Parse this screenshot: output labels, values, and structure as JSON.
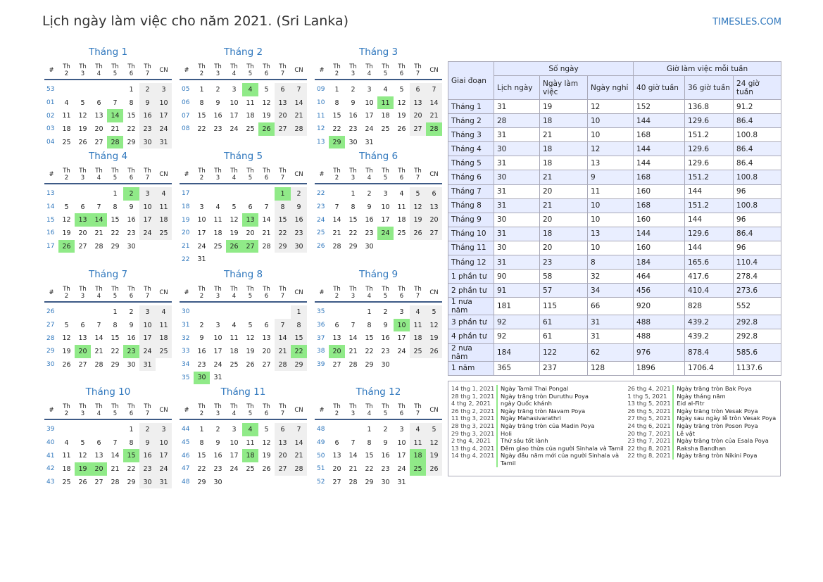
{
  "header": {
    "title": "Lịch ngày làm việc cho năm 2021. (Sri Lanka)",
    "site": "TIMESLES.COM"
  },
  "weekdays": [
    "#",
    "Th 2",
    "Th 3",
    "Th 4",
    "Th 5",
    "Th 6",
    "Th 7",
    "CN"
  ],
  "months": [
    {
      "name": "Tháng 1",
      "holidays": [
        14,
        28
      ],
      "weeks": [
        [
          "53",
          null,
          null,
          null,
          null,
          1,
          2,
          3
        ],
        [
          "01",
          4,
          5,
          6,
          7,
          8,
          9,
          10
        ],
        [
          "02",
          11,
          12,
          13,
          14,
          15,
          16,
          17
        ],
        [
          "03",
          18,
          19,
          20,
          21,
          22,
          23,
          24
        ],
        [
          "04",
          25,
          26,
          27,
          28,
          29,
          30,
          31
        ]
      ]
    },
    {
      "name": "Tháng 2",
      "holidays": [
        4,
        26
      ],
      "weeks": [
        [
          "05",
          1,
          2,
          3,
          4,
          5,
          6,
          7
        ],
        [
          "06",
          8,
          9,
          10,
          11,
          12,
          13,
          14
        ],
        [
          "07",
          15,
          16,
          17,
          18,
          19,
          20,
          21
        ],
        [
          "08",
          22,
          23,
          24,
          25,
          26,
          27,
          28
        ]
      ]
    },
    {
      "name": "Tháng 3",
      "holidays": [
        11,
        28,
        29
      ],
      "weeks": [
        [
          "09",
          1,
          2,
          3,
          4,
          5,
          6,
          7
        ],
        [
          "10",
          8,
          9,
          10,
          11,
          12,
          13,
          14
        ],
        [
          "11",
          15,
          16,
          17,
          18,
          19,
          20,
          21
        ],
        [
          "12",
          22,
          23,
          24,
          25,
          26,
          27,
          28
        ],
        [
          "13",
          29,
          30,
          31,
          null,
          null,
          null,
          null
        ]
      ]
    },
    {
      "name": "Tháng 4",
      "holidays": [
        2,
        13,
        14,
        26
      ],
      "weeks": [
        [
          "13",
          null,
          null,
          null,
          1,
          2,
          3,
          4
        ],
        [
          "14",
          5,
          6,
          7,
          8,
          9,
          10,
          11
        ],
        [
          "15",
          12,
          13,
          14,
          15,
          16,
          17,
          18
        ],
        [
          "16",
          19,
          20,
          21,
          22,
          23,
          24,
          25
        ],
        [
          "17",
          26,
          27,
          28,
          29,
          30,
          null,
          null
        ]
      ]
    },
    {
      "name": "Tháng 5",
      "holidays": [
        1,
        13,
        26,
        27
      ],
      "weeks": [
        [
          "17",
          null,
          null,
          null,
          null,
          null,
          1,
          2
        ],
        [
          "18",
          3,
          4,
          5,
          6,
          7,
          8,
          9
        ],
        [
          "19",
          10,
          11,
          12,
          13,
          14,
          15,
          16
        ],
        [
          "20",
          17,
          18,
          19,
          20,
          21,
          22,
          23
        ],
        [
          "21",
          24,
          25,
          26,
          27,
          28,
          29,
          30
        ],
        [
          "22",
          31,
          null,
          null,
          null,
          null,
          null,
          null
        ]
      ]
    },
    {
      "name": "Tháng 6",
      "holidays": [
        24
      ],
      "weeks": [
        [
          "22",
          null,
          1,
          2,
          3,
          4,
          5,
          6
        ],
        [
          "23",
          7,
          8,
          9,
          10,
          11,
          12,
          13
        ],
        [
          "24",
          14,
          15,
          16,
          17,
          18,
          19,
          20
        ],
        [
          "25",
          21,
          22,
          23,
          24,
          25,
          26,
          27
        ],
        [
          "26",
          28,
          29,
          30,
          null,
          null,
          null,
          null
        ]
      ]
    },
    {
      "name": "Tháng 7",
      "holidays": [
        20,
        23
      ],
      "weeks": [
        [
          "26",
          null,
          null,
          null,
          1,
          2,
          3,
          4
        ],
        [
          "27",
          5,
          6,
          7,
          8,
          9,
          10,
          11
        ],
        [
          "28",
          12,
          13,
          14,
          15,
          16,
          17,
          18
        ],
        [
          "29",
          19,
          20,
          21,
          22,
          23,
          24,
          25
        ],
        [
          "30",
          26,
          27,
          28,
          29,
          30,
          31,
          null
        ]
      ]
    },
    {
      "name": "Tháng 8",
      "holidays": [
        22,
        30
      ],
      "weeks": [
        [
          "30",
          null,
          null,
          null,
          null,
          null,
          null,
          1
        ],
        [
          "31",
          2,
          3,
          4,
          5,
          6,
          7,
          8
        ],
        [
          "32",
          9,
          10,
          11,
          12,
          13,
          14,
          15
        ],
        [
          "33",
          16,
          17,
          18,
          19,
          20,
          21,
          22
        ],
        [
          "34",
          23,
          24,
          25,
          26,
          27,
          28,
          29
        ],
        [
          "35",
          30,
          31,
          null,
          null,
          null,
          null,
          null
        ]
      ]
    },
    {
      "name": "Tháng 9",
      "holidays": [
        10,
        20
      ],
      "weeks": [
        [
          "35",
          null,
          null,
          1,
          2,
          3,
          4,
          5
        ],
        [
          "36",
          6,
          7,
          8,
          9,
          10,
          11,
          12
        ],
        [
          "37",
          13,
          14,
          15,
          16,
          17,
          18,
          19
        ],
        [
          "38",
          20,
          21,
          22,
          23,
          24,
          25,
          26
        ],
        [
          "39",
          27,
          28,
          29,
          30,
          null,
          null,
          null
        ]
      ]
    },
    {
      "name": "Tháng 10",
      "holidays": [
        15,
        19,
        20
      ],
      "weeks": [
        [
          "39",
          null,
          null,
          null,
          null,
          1,
          2,
          3
        ],
        [
          "40",
          4,
          5,
          6,
          7,
          8,
          9,
          10
        ],
        [
          "41",
          11,
          12,
          13,
          14,
          15,
          16,
          17
        ],
        [
          "42",
          18,
          19,
          20,
          21,
          22,
          23,
          24
        ],
        [
          "43",
          25,
          26,
          27,
          28,
          29,
          30,
          31
        ]
      ]
    },
    {
      "name": "Tháng 11",
      "holidays": [
        4,
        18
      ],
      "weeks": [
        [
          "44",
          1,
          2,
          3,
          4,
          5,
          6,
          7
        ],
        [
          "45",
          8,
          9,
          10,
          11,
          12,
          13,
          14
        ],
        [
          "46",
          15,
          16,
          17,
          18,
          19,
          20,
          21
        ],
        [
          "47",
          22,
          23,
          24,
          25,
          26,
          27,
          28
        ],
        [
          "48",
          29,
          30,
          null,
          null,
          null,
          null,
          null
        ]
      ]
    },
    {
      "name": "Tháng 12",
      "holidays": [
        18,
        25
      ],
      "weeks": [
        [
          "48",
          null,
          null,
          1,
          2,
          3,
          4,
          5
        ],
        [
          "49",
          6,
          7,
          8,
          9,
          10,
          11,
          12
        ],
        [
          "50",
          13,
          14,
          15,
          16,
          17,
          18,
          19
        ],
        [
          "51",
          20,
          21,
          22,
          23,
          24,
          25,
          26
        ],
        [
          "52",
          27,
          28,
          29,
          30,
          31,
          null,
          null
        ]
      ]
    }
  ],
  "summary": {
    "period_header": "Giai đoạn",
    "days_header": "Số ngày",
    "hours_header": "Giờ làm việc mỗi tuần",
    "columns": [
      "Lịch ngày",
      "Ngày làm việc",
      "Ngày nghỉ",
      "40 giờ tuần",
      "36 giờ tuần",
      "24 giờ tuần"
    ],
    "rows": [
      {
        "label": "Tháng 1",
        "values": [
          31,
          19,
          12,
          152,
          136.8,
          91.2
        ]
      },
      {
        "label": "Tháng 2",
        "values": [
          28,
          18,
          10,
          144,
          129.6,
          86.4
        ]
      },
      {
        "label": "Tháng 3",
        "values": [
          31,
          21,
          10,
          168,
          151.2,
          100.8
        ]
      },
      {
        "label": "Tháng 4",
        "values": [
          30,
          18,
          12,
          144,
          129.6,
          86.4
        ]
      },
      {
        "label": "Tháng 5",
        "values": [
          31,
          18,
          13,
          144,
          129.6,
          86.4
        ]
      },
      {
        "label": "Tháng 6",
        "values": [
          30,
          21,
          9,
          168,
          151.2,
          100.8
        ]
      },
      {
        "label": "Tháng 7",
        "values": [
          31,
          20,
          11,
          160,
          144,
          96
        ]
      },
      {
        "label": "Tháng 8",
        "values": [
          31,
          21,
          10,
          168,
          151.2,
          100.8
        ]
      },
      {
        "label": "Tháng 9",
        "values": [
          30,
          20,
          10,
          160,
          144,
          96
        ]
      },
      {
        "label": "Tháng 10",
        "values": [
          31,
          18,
          13,
          144,
          129.6,
          86.4
        ]
      },
      {
        "label": "Tháng 11",
        "values": [
          30,
          20,
          10,
          160,
          144,
          96
        ]
      },
      {
        "label": "Tháng 12",
        "values": [
          31,
          23,
          8,
          184,
          165.6,
          110.4
        ]
      },
      {
        "label": "1 phần tư",
        "values": [
          90,
          58,
          32,
          464,
          417.6,
          278.4
        ]
      },
      {
        "label": "2 phần tư",
        "values": [
          91,
          57,
          34,
          456,
          410.4,
          273.6
        ]
      },
      {
        "label": "1 nưa năm",
        "values": [
          181,
          115,
          66,
          920,
          828,
          552
        ]
      },
      {
        "label": "3 phần tư",
        "values": [
          92,
          61,
          31,
          488,
          439.2,
          292.8
        ]
      },
      {
        "label": "4 phần tư",
        "values": [
          92,
          61,
          31,
          488,
          439.2,
          292.8
        ]
      },
      {
        "label": "2 nưa năm",
        "values": [
          184,
          122,
          62,
          976,
          878.4,
          585.6
        ]
      },
      {
        "label": "1 năm",
        "values": [
          365,
          237,
          128,
          1896,
          1706.4,
          1137.6
        ]
      }
    ]
  },
  "holiday_columns": [
    [
      {
        "date": "14 thg 1, 2021",
        "name": "Ngày Tamil Thai Pongal"
      },
      {
        "date": "28 thg 1, 2021",
        "name": "Ngày trăng tròn Duruthu Poya"
      },
      {
        "date": "4 thg 2, 2021",
        "name": "ngày Quốc khánh"
      },
      {
        "date": "26 thg 2, 2021",
        "name": "Ngày trăng tròn Navam Poya"
      },
      {
        "date": "11 thg 3, 2021",
        "name": "Ngày Mahasivarathri"
      },
      {
        "date": "28 thg 3, 2021",
        "name": "Ngày trăng tròn của Madin Poya"
      },
      {
        "date": "29 thg 3, 2021",
        "name": "Holi"
      },
      {
        "date": "2 thg 4, 2021",
        "name": "Thứ sáu tốt lành"
      },
      {
        "date": "13 thg 4, 2021",
        "name": "Đêm giao thừa của người Sinhala và Tamil"
      },
      {
        "date": "14 thg 4, 2021",
        "name": "Ngày đầu năm mới của người Sinhala và Tamil"
      }
    ],
    [
      {
        "date": "26 thg 4, 2021",
        "name": "Ngày trăng tròn Bak Poya"
      },
      {
        "date": "1 thg 5, 2021",
        "name": "Ngày tháng năm"
      },
      {
        "date": "13 thg 5, 2021",
        "name": "Eid al-Fitr"
      },
      {
        "date": "26 thg 5, 2021",
        "name": "Ngày trăng tròn Vesak Poya"
      },
      {
        "date": "27 thg 5, 2021",
        "name": "Ngày sau ngày lễ tròn Vesak Poya"
      },
      {
        "date": "24 thg 6, 2021",
        "name": "Ngày trăng tròn Poson Poya"
      },
      {
        "date": "20 thg 7, 2021",
        "name": "Lễ vật"
      },
      {
        "date": "23 thg 7, 2021",
        "name": "Ngày trăng tròn của Esala Poya"
      },
      {
        "date": "22 thg 8, 2021",
        "name": "Raksha Bandhan"
      },
      {
        "date": "22 thg 8, 2021",
        "name": "Ngày trăng tròn Nikini Poya"
      }
    ]
  ]
}
